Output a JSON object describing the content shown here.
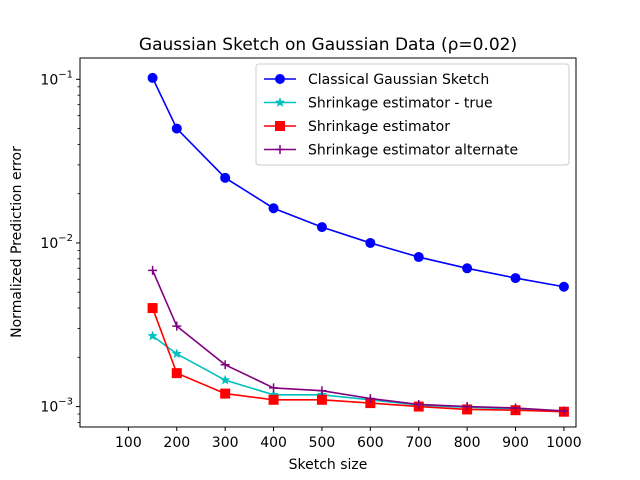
{
  "chart_data": {
    "type": "line",
    "title": "Gaussian Sketch on Gaussian Data (ρ=0.02)",
    "xlabel": "Sketch size",
    "ylabel": "Normalized Prediction error",
    "xlim": [
      0,
      1025
    ],
    "ylim": [
      0.00075,
      0.135
    ],
    "yscale": "log",
    "grid": false,
    "legend_position": "top-right",
    "xticks": [
      100,
      200,
      300,
      400,
      500,
      600,
      700,
      800,
      900,
      1000
    ],
    "xtick_labels": [
      "100",
      "200",
      "300",
      "400",
      "500",
      "600",
      "700",
      "800",
      "900",
      "1000"
    ],
    "yticks": [
      0.1,
      0.01,
      0.001
    ],
    "ytick_labels": [
      {
        "base": "10",
        "exp": "−1"
      },
      {
        "base": "10",
        "exp": "−2"
      },
      {
        "base": "10",
        "exp": "−3"
      }
    ],
    "x": [
      150,
      200,
      300,
      400,
      500,
      600,
      700,
      800,
      900,
      1000
    ],
    "series": [
      {
        "name": "Classical Gaussian Sketch",
        "color": "#0000ff",
        "marker": "circle",
        "values": [
          0.102,
          0.05,
          0.025,
          0.0163,
          0.0125,
          0.01,
          0.0082,
          0.007,
          0.0061,
          0.0054
        ]
      },
      {
        "name": "Shrinkage estimator - true",
        "color": "#00bfbf",
        "marker": "star",
        "values": [
          0.0027,
          0.0021,
          0.00145,
          0.00118,
          0.00118,
          0.0011,
          0.00102,
          0.00099,
          0.00097,
          0.00093
        ]
      },
      {
        "name": "Shrinkage estimator",
        "color": "#ff0000",
        "marker": "square",
        "values": [
          0.004,
          0.0016,
          0.0012,
          0.0011,
          0.0011,
          0.00105,
          0.001,
          0.00096,
          0.00095,
          0.00093
        ]
      },
      {
        "name": "Shrinkage estimator alternate",
        "color": "#800080",
        "marker": "plus",
        "values": [
          0.0068,
          0.0031,
          0.0018,
          0.0013,
          0.00125,
          0.00112,
          0.00103,
          0.001,
          0.00098,
          0.00094
        ]
      }
    ]
  }
}
